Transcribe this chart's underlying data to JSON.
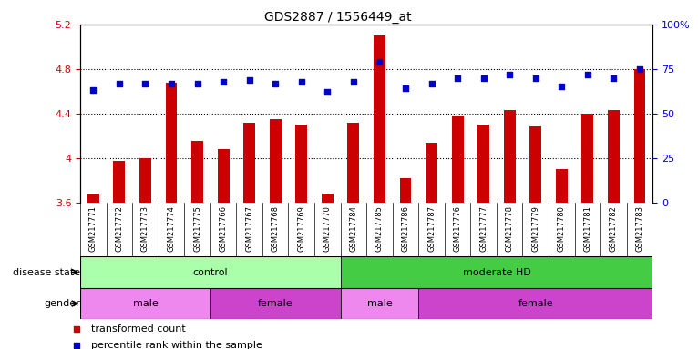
{
  "title": "GDS2887 / 1556449_at",
  "samples": [
    "GSM217771",
    "GSM217772",
    "GSM217773",
    "GSM217774",
    "GSM217775",
    "GSM217766",
    "GSM217767",
    "GSM217768",
    "GSM217769",
    "GSM217770",
    "GSM217784",
    "GSM217785",
    "GSM217786",
    "GSM217787",
    "GSM217776",
    "GSM217777",
    "GSM217778",
    "GSM217779",
    "GSM217780",
    "GSM217781",
    "GSM217782",
    "GSM217783"
  ],
  "bar_values": [
    3.68,
    3.97,
    4.0,
    4.68,
    4.15,
    4.08,
    4.32,
    4.35,
    4.3,
    3.68,
    4.32,
    5.1,
    3.82,
    4.14,
    4.37,
    4.3,
    4.43,
    4.28,
    3.9,
    4.4,
    4.43,
    4.8
  ],
  "percentile_values": [
    63,
    67,
    67,
    67,
    67,
    68,
    69,
    67,
    68,
    62,
    68,
    79,
    64,
    67,
    70,
    70,
    72,
    70,
    65,
    72,
    70,
    75
  ],
  "bar_color": "#cc0000",
  "dot_color": "#0000cc",
  "ylim_left": [
    3.6,
    5.2
  ],
  "ylim_right": [
    0,
    100
  ],
  "yticks_left": [
    3.6,
    4.0,
    4.4,
    4.8,
    5.2
  ],
  "ytick_labels_left": [
    "3.6",
    "4",
    "4.4",
    "4.8",
    "5.2"
  ],
  "yticks_right": [
    0,
    25,
    50,
    75,
    100
  ],
  "ytick_labels_right": [
    "0",
    "25",
    "50",
    "75",
    "100%"
  ],
  "disease_state_groups": [
    {
      "label": "control",
      "start": 0,
      "end": 10,
      "color": "#aaffaa"
    },
    {
      "label": "moderate HD",
      "start": 10,
      "end": 22,
      "color": "#44cc44"
    }
  ],
  "gender_groups": [
    {
      "label": "male",
      "start": 0,
      "end": 5,
      "color": "#ee88ee"
    },
    {
      "label": "female",
      "start": 5,
      "end": 10,
      "color": "#cc44cc"
    },
    {
      "label": "male",
      "start": 10,
      "end": 13,
      "color": "#ee88ee"
    },
    {
      "label": "female",
      "start": 13,
      "end": 22,
      "color": "#cc44cc"
    }
  ],
  "legend_items": [
    {
      "label": "transformed count",
      "color": "#cc0000"
    },
    {
      "label": "percentile rank within the sample",
      "color": "#0000cc"
    }
  ],
  "dotted_gridline_y": [
    4.0,
    4.4,
    4.8
  ],
  "background_color": "#ffffff",
  "tick_label_color_left": "#cc0000",
  "tick_label_color_right": "#0000cc",
  "xticklabel_bg": "#dddddd"
}
